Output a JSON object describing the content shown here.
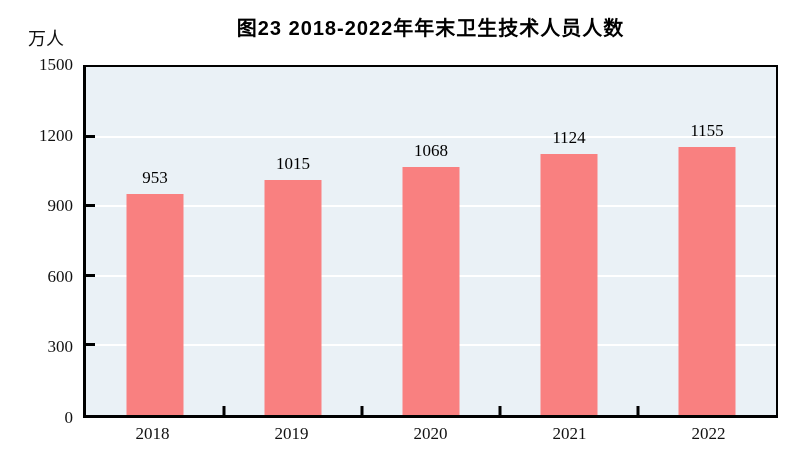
{
  "figure": {
    "title": "图23  2018-2022年年末卫生技术人员人数",
    "unit_label": "万人"
  },
  "chart_data": {
    "type": "bar",
    "title": "图23  2018-2022年年末卫生技术人员人数",
    "xlabel": "",
    "ylabel": "万人",
    "categories": [
      "2018",
      "2019",
      "2020",
      "2021",
      "2022"
    ],
    "values": [
      953,
      1015,
      1068,
      1124,
      1155
    ],
    "ylim": [
      0,
      1500
    ],
    "yticks": [
      0,
      300,
      600,
      900,
      1200,
      1500
    ],
    "grid": true,
    "legend_position": "none",
    "colors": {
      "bar": "#f98080",
      "plot_background": "#eaf1f6",
      "gridline": "#ffffff",
      "axis": "#000000",
      "text": "#000000"
    }
  }
}
